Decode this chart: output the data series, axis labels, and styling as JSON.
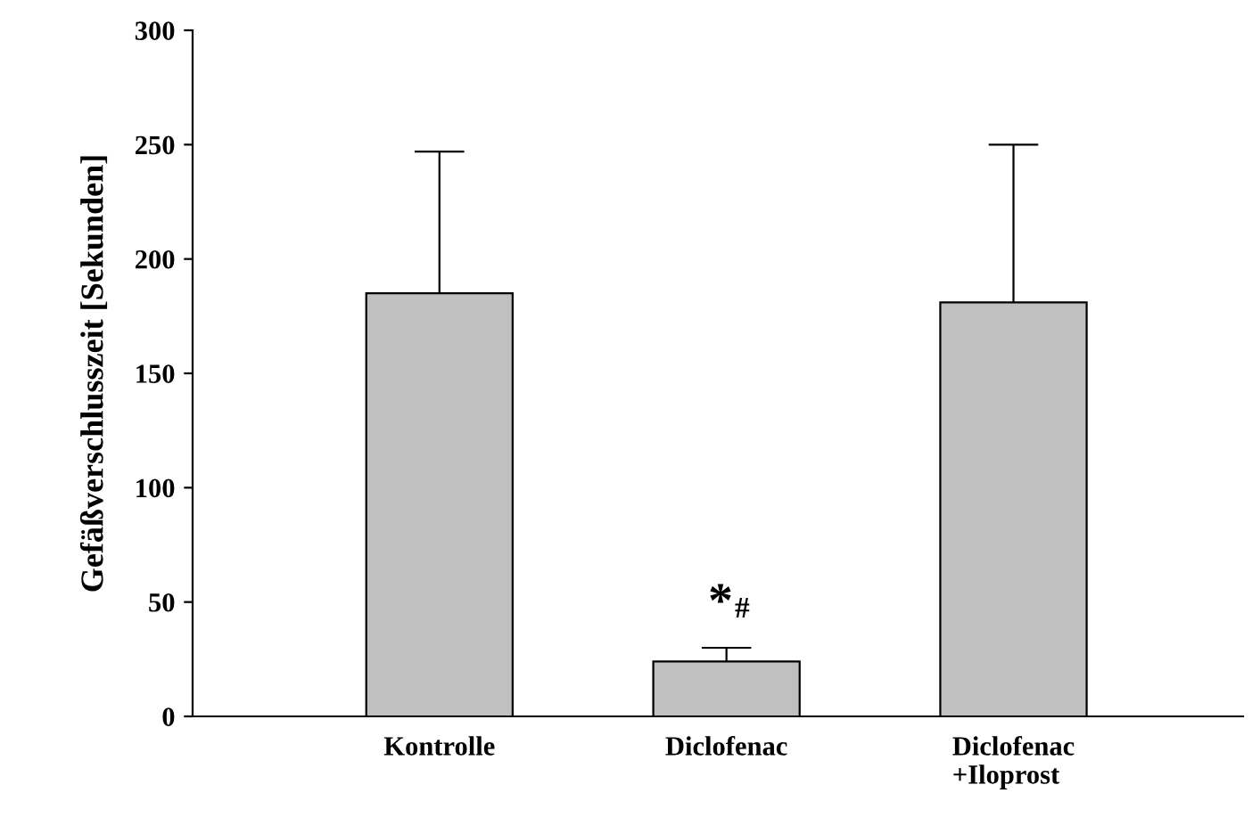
{
  "chart_data": {
    "type": "bar",
    "ylabel": "Gefäßverschlusszeit [Sekunden]",
    "categories": [
      "Kontrolle",
      "Diclofenac",
      "Diclofenac\n+Iloprost"
    ],
    "values": [
      185,
      24,
      181
    ],
    "errors": [
      62,
      6,
      69
    ],
    "color": "#c0c0c0",
    "ylim": [
      0,
      300
    ],
    "yticks": [
      0,
      50,
      100,
      150,
      200,
      250,
      300
    ],
    "grid": false,
    "annotations": [
      "*$_{#}$"
    ]
  }
}
